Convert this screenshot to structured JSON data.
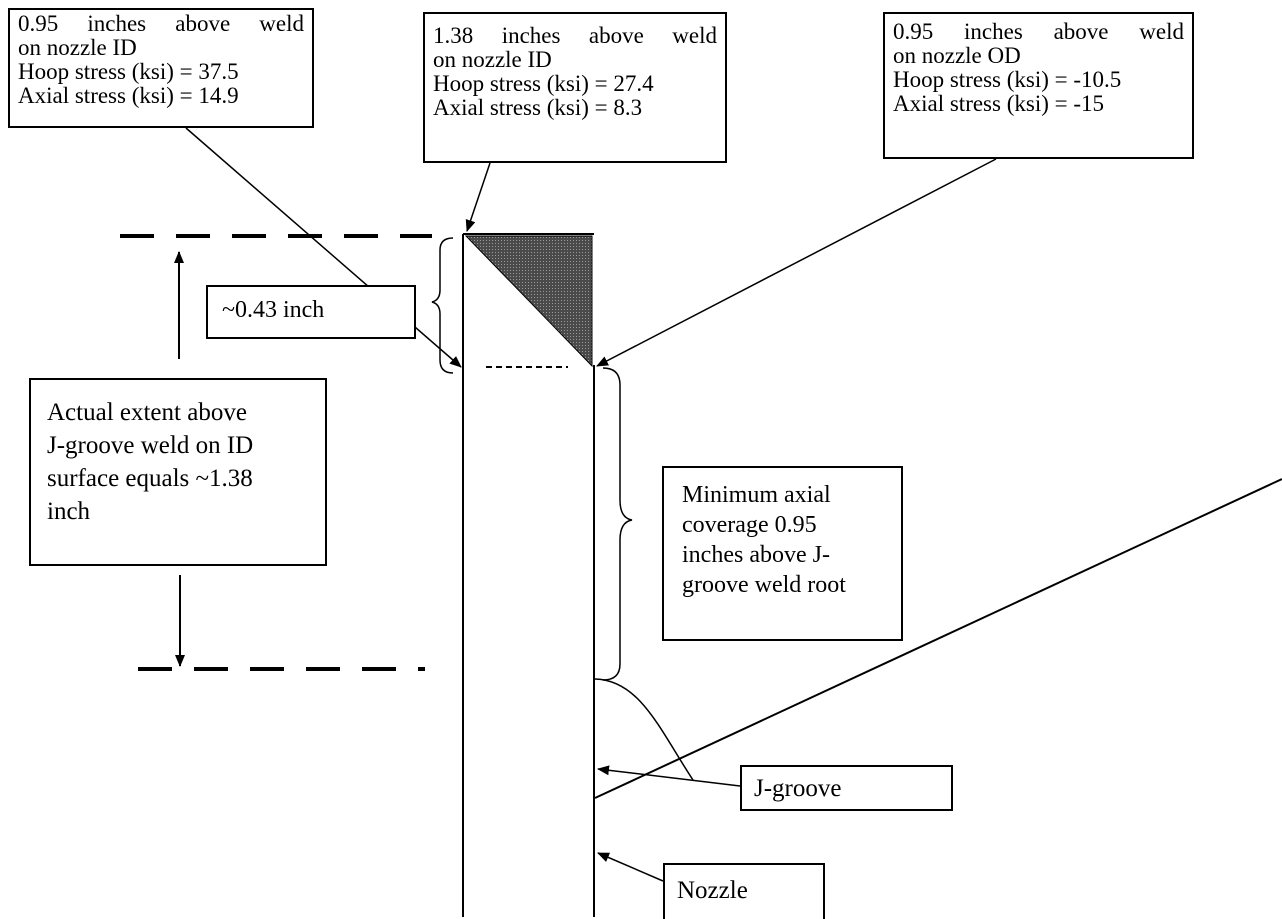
{
  "callouts": {
    "id_095": {
      "line1": "0.95 inches above weld",
      "line2": "on nozzle ID",
      "line3": "Hoop stress (ksi) = 37.5",
      "line4": "Axial stress (ksi) = 14.9"
    },
    "id_138": {
      "line1": "1.38 inches above weld",
      "line2": "on nozzle ID",
      "line3": "Hoop stress (ksi) = 27.4",
      "line4": "Axial stress (ksi) = 8.3"
    },
    "od_095": {
      "line1": "0.95 inches above weld",
      "line2": "on nozzle OD",
      "line3": "Hoop stress (ksi) = -10.5",
      "line4": "Axial stress (ksi) = -15"
    },
    "dim_043": "~0.43 inch",
    "actual_extent": {
      "line1": "Actual extent above",
      "line2": "J-groove weld on ID",
      "line3": "surface equals ~1.38",
      "line4": "inch"
    },
    "min_coverage": {
      "line1": "Minimum axial",
      "line2": "coverage 0.95",
      "line3": "inches above J-",
      "line4": "groove weld root"
    },
    "jgroove": "J-groove",
    "nozzle": "Nozzle"
  },
  "colors": {
    "line": "#000000",
    "weld_fill": "#505050",
    "background": "#ffffff"
  }
}
